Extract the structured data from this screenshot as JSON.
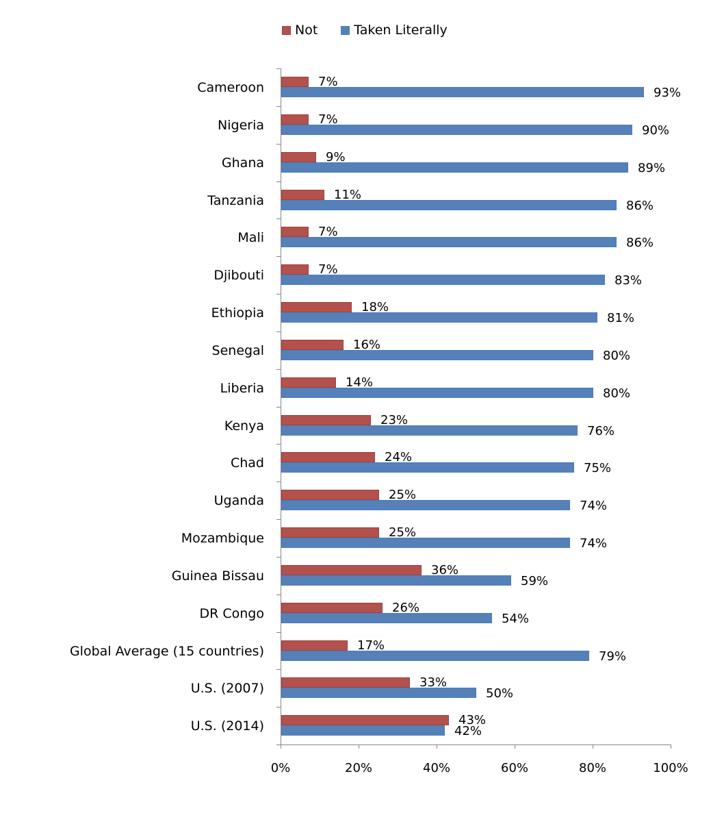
{
  "legend": [
    {
      "label": "Not",
      "color": "#b3514d"
    },
    {
      "label": "Taken Literally",
      "color": "#5580b8"
    }
  ],
  "x_axis": {
    "ticks": [
      "0%",
      "20%",
      "40%",
      "60%",
      "80%",
      "100%"
    ]
  },
  "chart_data": {
    "type": "bar",
    "orientation": "horizontal",
    "title": "",
    "xlabel": "",
    "ylabel": "",
    "xlim": [
      0,
      100
    ],
    "grid": false,
    "legend_position": "top",
    "categories": [
      "Cameroon",
      "Nigeria",
      "Ghana",
      "Tanzania",
      "Mali",
      "Djibouti",
      "Ethiopia",
      "Senegal",
      "Liberia",
      "Kenya",
      "Chad",
      "Uganda",
      "Mozambique",
      "Guinea Bissau",
      "DR Congo",
      "Global Average (15 countries)",
      "U.S. (2007)",
      "U.S. (2014)"
    ],
    "series": [
      {
        "name": "Not",
        "color": "#b3514d",
        "values": [
          7,
          7,
          9,
          11,
          7,
          7,
          18,
          16,
          14,
          23,
          24,
          25,
          25,
          36,
          26,
          17,
          33,
          43
        ]
      },
      {
        "name": "Taken Literally",
        "color": "#5580b8",
        "values": [
          93,
          90,
          89,
          86,
          86,
          83,
          81,
          80,
          80,
          76,
          75,
          74,
          74,
          59,
          54,
          79,
          50,
          42
        ]
      }
    ],
    "x_ticks": [
      "0%",
      "20%",
      "40%",
      "60%",
      "80%",
      "100%"
    ]
  }
}
